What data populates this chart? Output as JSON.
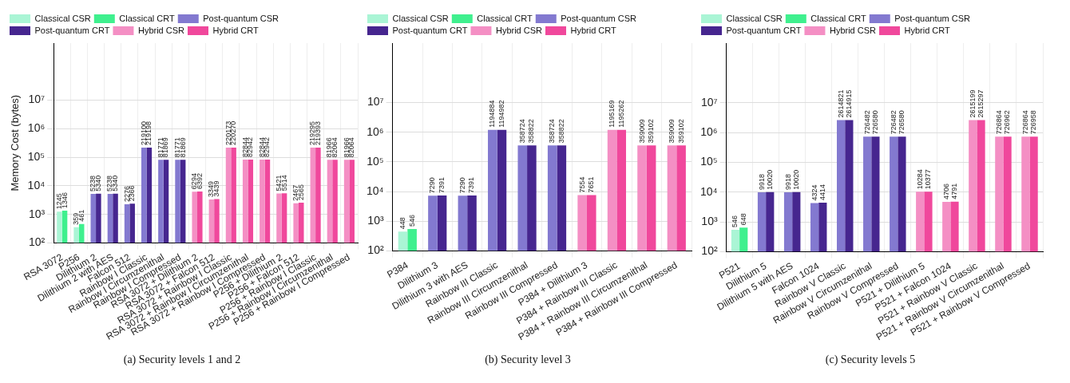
{
  "chart_data": [
    {
      "type": "bar",
      "title": "(a) Security levels 1 and 2",
      "ylabel": "Memory Cost (bytes)",
      "categories": [
        "RSA 3072",
        "P256",
        "Dilithium 2",
        "Dilithium 2 with AES",
        "Falcon 512",
        "Rainbow I Classic",
        "Rainbow I Circumzenithal",
        "Rainbow I Compressed",
        "RSA 3072 + Dilithium 2",
        "RSA 3072 + Falcon 512",
        "RSA 3072 + Rainbow I Classic",
        "RSA 3072 + Rainbow I Circumzenithal",
        "RSA 3072 + Rainbow I Compressed",
        "P256 + Dilithium 2",
        "P256 + Falcon 512",
        "P256 + Rainbow I Classic",
        "P256 + Rainbow I Circumzenithal",
        "P256 + Rainbow I Compressed"
      ],
      "series": [
        {
          "name": "Classical CSR",
          "color": "#aaf5d5",
          "values": [
            1245,
            359,
            null,
            null,
            null,
            null,
            null,
            null,
            null,
            null,
            null,
            null,
            null,
            null,
            null,
            null,
            null,
            null
          ]
        },
        {
          "name": "Classical CRT",
          "color": "#3ff08e",
          "values": [
            1346,
            461,
            null,
            null,
            null,
            null,
            null,
            null,
            null,
            null,
            null,
            null,
            null,
            null,
            null,
            null,
            null,
            null
          ]
        },
        {
          "name": "Post-quantum CSR",
          "color": "#8379d0",
          "values": [
            null,
            null,
            5238,
            5238,
            2276,
            219100,
            81771,
            81771,
            null,
            null,
            null,
            null,
            null,
            null,
            null,
            null,
            null,
            null
          ]
        },
        {
          "name": "Post-quantum CRT",
          "color": "#46268f",
          "values": [
            null,
            null,
            5340,
            5340,
            2366,
            219198,
            81869,
            81869,
            null,
            null,
            null,
            null,
            null,
            null,
            null,
            null,
            null,
            null
          ]
        },
        {
          "name": "Hybrid CSR",
          "color": "#f48fc4",
          "values": [
            null,
            null,
            null,
            null,
            null,
            null,
            null,
            null,
            6294,
            3349,
            220173,
            82844,
            82844,
            5421,
            2467,
            219295,
            81966,
            81966
          ]
        },
        {
          "name": "Hybrid CRT",
          "color": "#f0489c",
          "values": [
            null,
            null,
            null,
            null,
            null,
            null,
            null,
            null,
            6392,
            3439,
            220270,
            82942,
            82942,
            5514,
            2565,
            219393,
            82064,
            82064
          ]
        }
      ],
      "log": true,
      "ylim": [
        100,
        1000000000
      ],
      "yticks": [
        {
          "value": 100,
          "label": "10²"
        },
        {
          "value": 1000,
          "label": "10³"
        },
        {
          "value": 10000,
          "label": "10⁴"
        },
        {
          "value": 100000,
          "label": "10⁵"
        },
        {
          "value": 1000000,
          "label": "10⁶"
        },
        {
          "value": 10000000,
          "label": "10⁷"
        }
      ],
      "grid": true,
      "legend": "top left",
      "data_labels": true
    },
    {
      "type": "bar",
      "title": "(b) Security level 3",
      "categories": [
        "P384",
        "Dilithium 3",
        "Dilithium 3 with AES",
        "Rainbow III Classic",
        "Rainbow III Circumzenithal",
        "Rainbow III Compressed",
        "P384 + Dilithium 3",
        "P384 + Rainbow III Classic",
        "P384 + Rainbow III Circumzenithal",
        "P384 + Rainbow III Compressed"
      ],
      "series": [
        {
          "name": "Classical CSR",
          "color": "#aaf5d5",
          "values": [
            448,
            null,
            null,
            null,
            null,
            null,
            null,
            null,
            null,
            null
          ]
        },
        {
          "name": "Classical CRT",
          "color": "#3ff08e",
          "values": [
            546,
            null,
            null,
            null,
            null,
            null,
            null,
            null,
            null,
            null
          ]
        },
        {
          "name": "Post-quantum CSR",
          "color": "#8379d0",
          "values": [
            null,
            7290,
            7290,
            1194884,
            358724,
            358724,
            null,
            null,
            null,
            null
          ]
        },
        {
          "name": "Post-quantum CRT",
          "color": "#46268f",
          "values": [
            null,
            7391,
            7391,
            1194982,
            358822,
            358822,
            null,
            null,
            null,
            null
          ]
        },
        {
          "name": "Hybrid CSR",
          "color": "#f48fc4",
          "values": [
            null,
            null,
            null,
            null,
            null,
            null,
            7554,
            1195169,
            359009,
            359009
          ]
        },
        {
          "name": "Hybrid CRT",
          "color": "#f0489c",
          "values": [
            null,
            null,
            null,
            null,
            null,
            null,
            7651,
            1195262,
            359102,
            359102
          ]
        }
      ],
      "log": true,
      "ylim": [
        100,
        1000000000
      ],
      "yticks": [
        {
          "value": 100,
          "label": "10²"
        },
        {
          "value": 1000,
          "label": "10³"
        },
        {
          "value": 10000,
          "label": "10⁴"
        },
        {
          "value": 100000,
          "label": "10⁵"
        },
        {
          "value": 1000000,
          "label": "10⁶"
        },
        {
          "value": 10000000,
          "label": "10⁷"
        }
      ],
      "grid": true,
      "legend": "top left",
      "data_labels": true
    },
    {
      "type": "bar",
      "title": "(c) Security levels 5",
      "categories": [
        "P521",
        "Dilithium 5",
        "Dilithium 5 with AES",
        "Falcon 1024",
        "Rainbow V Classic",
        "Rainbow V Circumzenithal",
        "Rainbow V Compressed",
        "P521 + Dilithium 5",
        "P521 + Falcon 1024",
        "P521 + Rainbow V Classic",
        "P521 + Rainbow V Circumzenithal",
        "P521 + Rainbow V Compressed"
      ],
      "series": [
        {
          "name": "Classical CSR",
          "color": "#aaf5d5",
          "values": [
            546,
            null,
            null,
            null,
            null,
            null,
            null,
            null,
            null,
            null,
            null,
            null
          ]
        },
        {
          "name": "Classical CRT",
          "color": "#3ff08e",
          "values": [
            648,
            null,
            null,
            null,
            null,
            null,
            null,
            null,
            null,
            null,
            null,
            null
          ]
        },
        {
          "name": "Post-quantum CSR",
          "color": "#8379d0",
          "values": [
            null,
            9918,
            9918,
            4324,
            2614821,
            726482,
            726482,
            null,
            null,
            null,
            null,
            null
          ]
        },
        {
          "name": "Post-quantum CRT",
          "color": "#46268f",
          "values": [
            null,
            10020,
            10020,
            4414,
            2614915,
            726580,
            726580,
            null,
            null,
            null,
            null,
            null
          ]
        },
        {
          "name": "Hybrid CSR",
          "color": "#f48fc4",
          "values": [
            null,
            null,
            null,
            null,
            null,
            null,
            null,
            10284,
            4706,
            2615199,
            726864,
            726864
          ]
        },
        {
          "name": "Hybrid CRT",
          "color": "#f0489c",
          "values": [
            null,
            null,
            null,
            null,
            null,
            null,
            null,
            10377,
            4791,
            2615297,
            726962,
            726958
          ]
        }
      ],
      "log": true,
      "ylim": [
        100,
        1000000000
      ],
      "yticks": [
        {
          "value": 100,
          "label": "10²"
        },
        {
          "value": 1000,
          "label": "10³"
        },
        {
          "value": 10000,
          "label": "10⁴"
        },
        {
          "value": 100000,
          "label": "10⁵"
        },
        {
          "value": 1000000,
          "label": "10⁶"
        },
        {
          "value": 10000000,
          "label": "10⁷"
        }
      ],
      "grid": true,
      "legend": "top left",
      "data_labels": true
    }
  ]
}
